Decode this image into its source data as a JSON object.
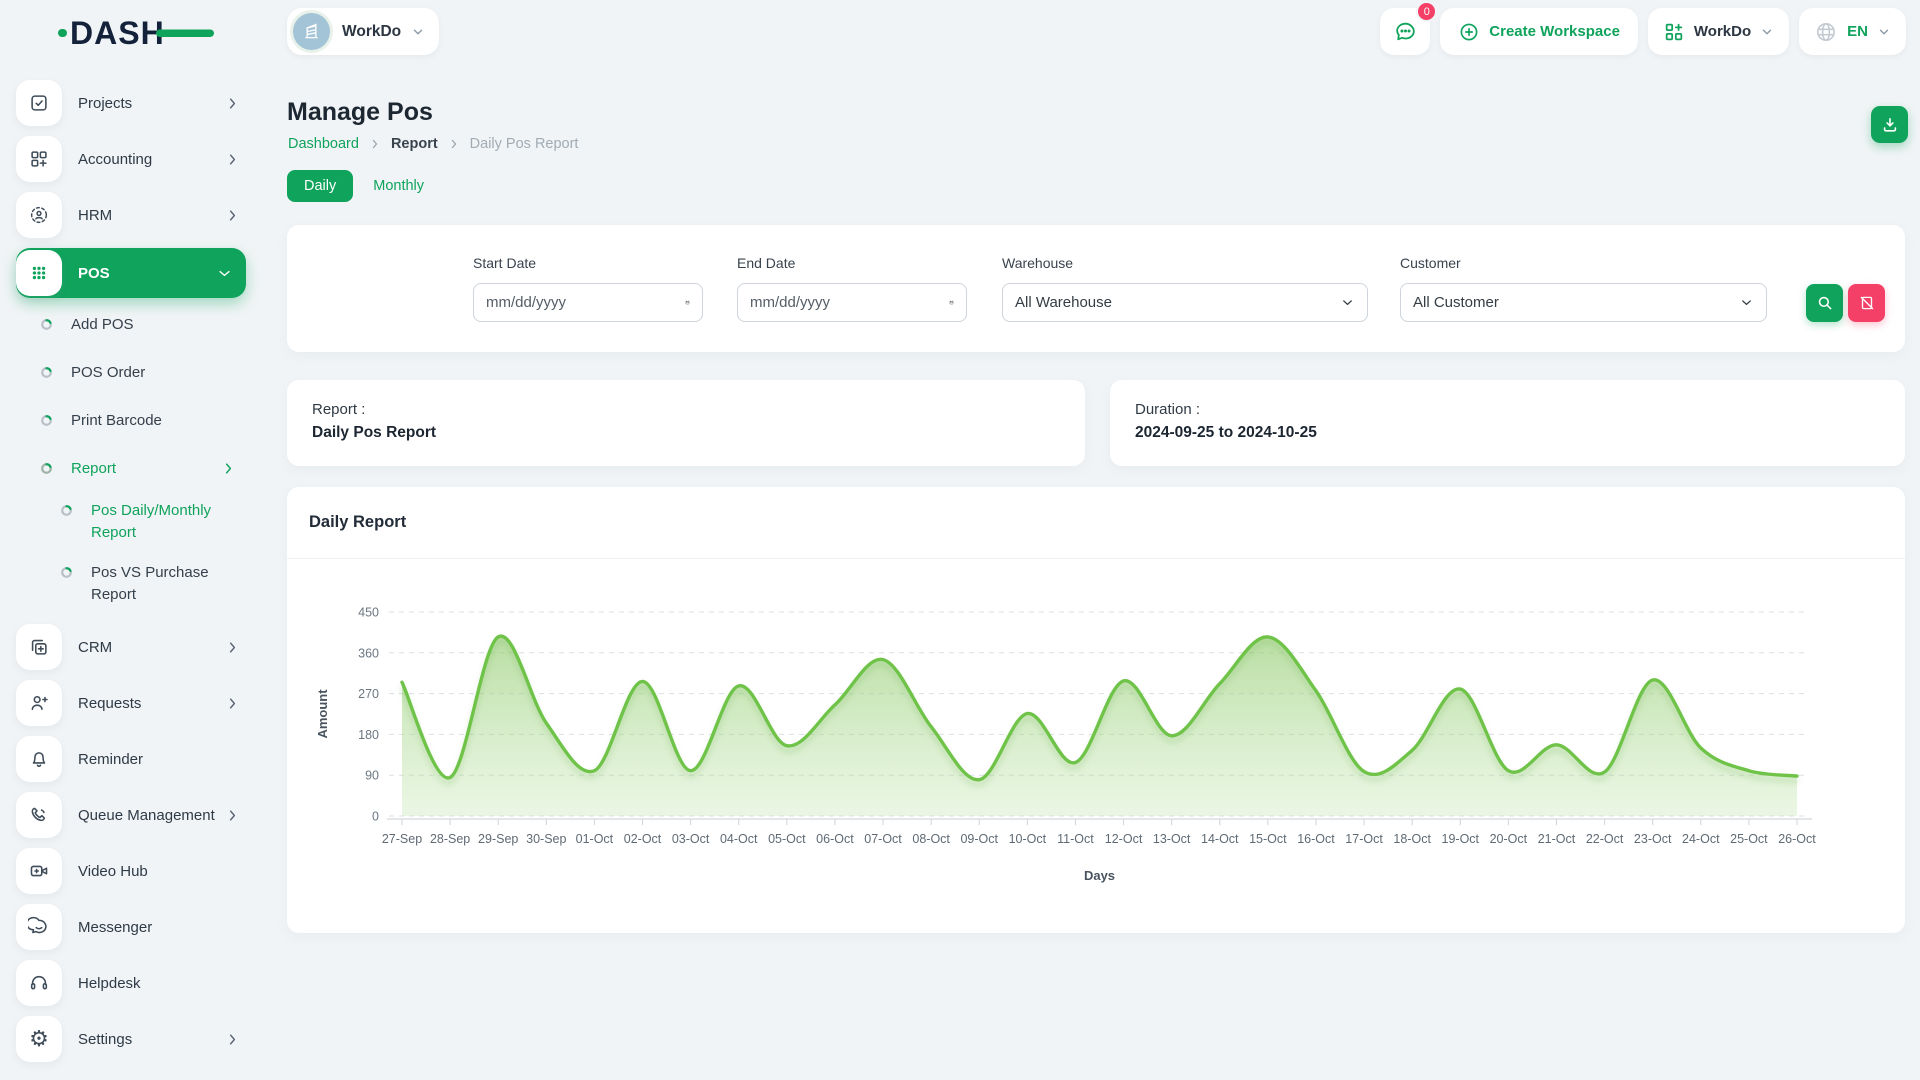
{
  "brand": {
    "logo_text": "DASH"
  },
  "colors": {
    "primary": "#0fa35c",
    "pink": "#f43f66",
    "chart_line": "#6ec348"
  },
  "topbar": {
    "workspace_label": "WorkDo",
    "chat_badge": "0",
    "create_workspace": "Create Workspace",
    "app_menu_label": "WorkDo",
    "language": "EN"
  },
  "sidebar": {
    "items": [
      {
        "label": "Projects"
      },
      {
        "label": "Accounting"
      },
      {
        "label": "HRM"
      },
      {
        "label": "POS"
      }
    ],
    "pos_children": [
      {
        "label": "Add POS"
      },
      {
        "label": "POS Order"
      },
      {
        "label": "Print Barcode"
      },
      {
        "label": "Report"
      }
    ],
    "report_children": [
      {
        "label": "Pos Daily/Monthly Report"
      },
      {
        "label": "Pos VS Purchase Report"
      }
    ],
    "bottom_items": [
      {
        "label": "CRM"
      },
      {
        "label": "Requests"
      },
      {
        "label": "Reminder"
      },
      {
        "label": "Queue Management"
      },
      {
        "label": "Video Hub"
      },
      {
        "label": "Messenger"
      },
      {
        "label": "Helpdesk"
      },
      {
        "label": "Settings"
      }
    ]
  },
  "page": {
    "title": "Manage Pos",
    "breadcrumb": [
      "Dashboard",
      "Report",
      "Daily Pos Report"
    ],
    "tabs": {
      "daily": "Daily",
      "monthly": "Monthly"
    }
  },
  "filters": {
    "start_date_label": "Start Date",
    "start_date_placeholder": "mm/dd/yyyy",
    "end_date_label": "End Date",
    "end_date_placeholder": "mm/dd/yyyy",
    "warehouse_label": "Warehouse",
    "warehouse_value": "All Warehouse",
    "customer_label": "Customer",
    "customer_value": "All Customer"
  },
  "summary": {
    "report_label": "Report :",
    "report_value": "Daily Pos Report",
    "duration_label": "Duration :",
    "duration_value": "2024-09-25 to 2024-10-25"
  },
  "chart_card": {
    "title": "Daily Report"
  },
  "chart_data": {
    "type": "area",
    "title": "Daily Report",
    "categories": [
      "27-Sep",
      "28-Sep",
      "29-Sep",
      "30-Sep",
      "01-Oct",
      "02-Oct",
      "03-Oct",
      "04-Oct",
      "05-Oct",
      "06-Oct",
      "07-Oct",
      "08-Oct",
      "09-Oct",
      "10-Oct",
      "11-Oct",
      "12-Oct",
      "13-Oct",
      "14-Oct",
      "15-Oct",
      "16-Oct",
      "17-Oct",
      "18-Oct",
      "19-Oct",
      "20-Oct",
      "21-Oct",
      "22-Oct",
      "23-Oct",
      "24-Oct",
      "25-Oct",
      "26-Oct"
    ],
    "values": [
      295,
      85,
      395,
      205,
      100,
      297,
      100,
      287,
      155,
      245,
      345,
      197,
      80,
      226,
      118,
      298,
      177,
      292,
      395,
      276,
      98,
      145,
      280,
      100,
      157,
      97,
      300,
      150,
      100,
      88
    ],
    "xlabel": "Days",
    "ylabel": "Amount",
    "ylim": [
      0,
      450
    ],
    "yticks": [
      0,
      90,
      180,
      270,
      360,
      450
    ],
    "grid": "horizontal-dashed",
    "legend": false,
    "line_color": "#6ec348",
    "fill": "green-gradient"
  }
}
